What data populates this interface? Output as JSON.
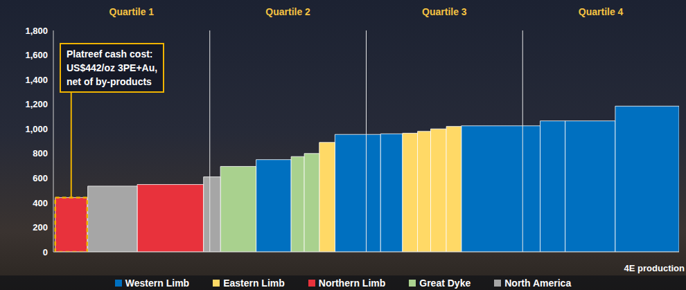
{
  "chart_data": {
    "type": "bar",
    "x_label": "4E production",
    "annotation": [
      "Platreef cash cost:",
      "US$442/oz 3PE+Au,",
      "net of by-products"
    ],
    "xlim": [
      0,
      100
    ],
    "ylim": [
      0,
      1800
    ],
    "yticks": [
      {
        "value": 0,
        "label": "0"
      },
      {
        "value": 200,
        "label": "200"
      },
      {
        "value": 400,
        "label": "400"
      },
      {
        "value": 600,
        "label": "600"
      },
      {
        "value": 800,
        "label": "800"
      },
      {
        "value": 1000,
        "label": "1,000"
      },
      {
        "value": 1200,
        "label": "1,200"
      },
      {
        "value": 1400,
        "label": "1,400"
      },
      {
        "value": 1600,
        "label": "1,600"
      },
      {
        "value": 1800,
        "label": "1,800"
      }
    ],
    "tick_labels": "y",
    "grid": false,
    "legend": "bottom",
    "quartiles": [
      {
        "label": "Quartile 1",
        "x0": 0,
        "x1": 25
      },
      {
        "label": "Quartile 2",
        "x0": 25,
        "x1": 50
      },
      {
        "label": "Quartile 3",
        "x0": 50,
        "x1": 75
      },
      {
        "label": "Quartile 4",
        "x0": 75,
        "x1": 100
      }
    ],
    "series": [
      {
        "name": "Western Limb",
        "color": "#0070c0",
        "x0": [
          32.4,
          45.0,
          52.3,
          65.2,
          77.8,
          81.8,
          89.8
        ],
        "x1": [
          38.0,
          52.3,
          55.8,
          77.8,
          81.8,
          89.8,
          100
        ],
        "values": [
          750,
          955,
          960,
          1025,
          1065,
          1065,
          1185
        ]
      },
      {
        "name": "Eastern Limb",
        "color": "#ffd966",
        "x0": [
          42.5,
          55.8,
          58.2,
          60.3,
          62.8
        ],
        "x1": [
          45.0,
          58.2,
          60.3,
          62.8,
          65.2
        ],
        "values": [
          890,
          965,
          980,
          1000,
          1020
        ]
      },
      {
        "name": "Northern Limb",
        "color": "#e8323c",
        "x0": [
          0.3,
          13.4
        ],
        "x1": [
          5.4,
          24.0
        ],
        "values": [
          442,
          548
        ]
      },
      {
        "name": "Great Dyke",
        "color": "#a9d18e",
        "x0": [
          26.7,
          38.0,
          40.1
        ],
        "x1": [
          32.4,
          40.1,
          42.5
        ],
        "values": [
          695,
          775,
          800
        ]
      },
      {
        "name": "North America",
        "color": "#a6a6a6",
        "x0": [
          5.5,
          24.0
        ],
        "x1": [
          13.4,
          26.7
        ],
        "values": [
          535,
          610
        ]
      }
    ]
  }
}
